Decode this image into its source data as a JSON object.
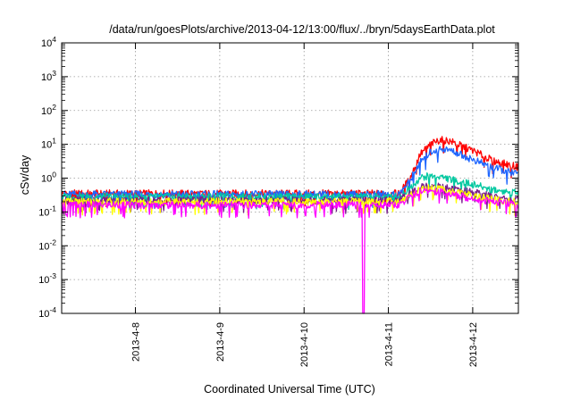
{
  "chart_data": {
    "type": "line",
    "title": "/data/run/goesPlots/archive/2013-04-12/13:00/flux/../bryn/5daysEarthData.plot",
    "xlabel": "Coordinated Universal Time (UTC)",
    "ylabel": "cSv/day",
    "yscale": "log",
    "ylim": [
      0.0001,
      10000
    ],
    "xlim": [
      "2013-04-07 03:00",
      "2013-04-12 13:00"
    ],
    "grid": true,
    "legend": "none",
    "x_ticks": [
      "2013-4-8",
      "2013-4-9",
      "2013-4-10",
      "2013-4-11",
      "2013-4-12"
    ],
    "y_ticks": [
      {
        "value": 0.0001,
        "base": "10",
        "exp": "-4"
      },
      {
        "value": 0.001,
        "base": "10",
        "exp": "-3"
      },
      {
        "value": 0.01,
        "base": "10",
        "exp": "-2"
      },
      {
        "value": 0.1,
        "base": "10",
        "exp": "-1"
      },
      {
        "value": 1,
        "base": "10",
        "exp": "0"
      },
      {
        "value": 10,
        "base": "10",
        "exp": "1"
      },
      {
        "value": 100,
        "base": "10",
        "exp": "2"
      },
      {
        "value": 1000,
        "base": "10",
        "exp": "3"
      },
      {
        "value": 10000,
        "base": "10",
        "exp": "4"
      }
    ],
    "x": [
      "2013-04-07 03:00",
      "2013-04-08 00:00",
      "2013-04-09 00:00",
      "2013-04-10 00:00",
      "2013-04-10 17:00",
      "2013-04-11 00:00",
      "2013-04-11 03:00",
      "2013-04-11 06:00",
      "2013-04-11 09:00",
      "2013-04-11 12:00",
      "2013-04-11 15:00",
      "2013-04-11 18:00",
      "2013-04-12 00:00",
      "2013-04-12 06:00",
      "2013-04-12 13:00"
    ],
    "series": [
      {
        "color": "#ff0000",
        "values": [
          0.35,
          0.35,
          0.35,
          0.35,
          0.35,
          0.35,
          0.35,
          0.9,
          5,
          10,
          14,
          12,
          6.5,
          3.2,
          2.1
        ]
      },
      {
        "color": "#1e66ff",
        "values": [
          0.33,
          0.33,
          0.33,
          0.33,
          0.33,
          0.33,
          0.33,
          0.8,
          3,
          6,
          7.5,
          6.5,
          3.5,
          2,
          1.3
        ]
      },
      {
        "color": "#00c8a0",
        "values": [
          0.28,
          0.28,
          0.28,
          0.28,
          0.28,
          0.28,
          0.28,
          0.5,
          1,
          1.2,
          1.1,
          0.9,
          0.65,
          0.45,
          0.36
        ]
      },
      {
        "color": "#7a1e8c",
        "values": [
          0.22,
          0.22,
          0.22,
          0.22,
          0.22,
          0.22,
          0.22,
          0.35,
          0.55,
          0.6,
          0.55,
          0.48,
          0.38,
          0.28,
          0.22
        ]
      },
      {
        "color": "#ffff00",
        "values": [
          0.2,
          0.2,
          0.2,
          0.2,
          0.2,
          0.2,
          0.2,
          0.3,
          0.48,
          0.5,
          0.47,
          0.4,
          0.3,
          0.23,
          0.19
        ]
      },
      {
        "color": "#ff00ff",
        "values": [
          0.16,
          0.16,
          0.16,
          0.16,
          0.0001,
          0.16,
          0.16,
          0.28,
          0.4,
          0.42,
          0.4,
          0.33,
          0.25,
          0.2,
          0.16
        ]
      }
    ]
  }
}
